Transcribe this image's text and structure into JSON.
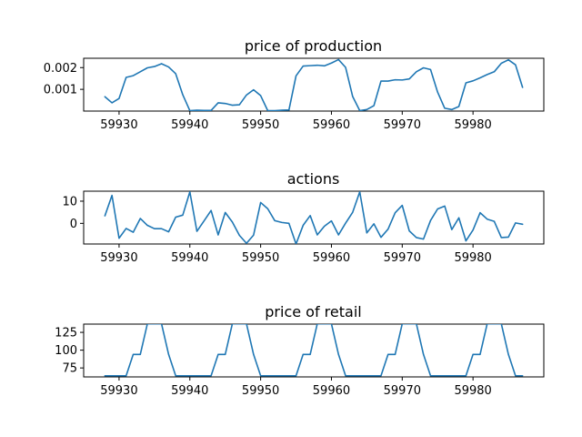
{
  "chart_data": [
    {
      "type": "line",
      "title": "price of production",
      "xlabel": "",
      "ylabel": "",
      "xlim": [
        59925,
        59990
      ],
      "ylim": [
        0.0,
        0.00243
      ],
      "x_ticks": [
        "59930",
        "59940",
        "59950",
        "59960",
        "59970",
        "59980"
      ],
      "y_ticks": [
        "0.001",
        "0.002"
      ],
      "grid": false,
      "color": "#1f77b4",
      "series": [
        {
          "x": [
            59928,
            59929,
            59930,
            59931,
            59932,
            59933,
            59934,
            59935,
            59936,
            59937,
            59938,
            59939,
            59940,
            59941,
            59942,
            59943,
            59944,
            59945,
            59946,
            59947,
            59948,
            59949,
            59950,
            59951,
            59952,
            59953,
            59954,
            59955,
            59956,
            59957,
            59958,
            59959,
            59960,
            59961,
            59962,
            59963,
            59964,
            59965,
            59966,
            59967,
            59968,
            59969,
            59970,
            59971,
            59972,
            59973,
            59974,
            59975,
            59976,
            59977,
            59978,
            59979,
            59980,
            59981,
            59982,
            59983,
            59984,
            59985,
            59986,
            59987
          ],
          "values": [
            0.00066,
            0.00038,
            0.00058,
            0.00155,
            0.00163,
            0.00181,
            0.00199,
            0.00205,
            0.00218,
            0.00203,
            0.00172,
            0.00075,
            2e-05,
            4e-05,
            3e-05,
            3e-05,
            0.00038,
            0.00035,
            0.00027,
            0.00029,
            0.00074,
            0.00098,
            0.00071,
            2e-05,
            2e-05,
            4e-05,
            5e-05,
            0.00162,
            0.00207,
            0.00209,
            0.00211,
            0.00208,
            0.00221,
            0.00237,
            0.00201,
            0.00067,
            2e-05,
            7e-05,
            0.00025,
            0.00138,
            0.00138,
            0.00144,
            0.00143,
            0.00148,
            0.00181,
            0.00199,
            0.00191,
            0.00087,
            0.00013,
            7e-05,
            0.00021,
            0.0013,
            0.00139,
            0.00153,
            0.00168,
            0.00181,
            0.0022,
            0.00236,
            0.00213,
            0.00109
          ]
        }
      ]
    },
    {
      "type": "line",
      "title": "actions",
      "xlabel": "",
      "ylabel": "",
      "xlim": [
        59925,
        59990
      ],
      "ylim": [
        -9.3,
        14.5
      ],
      "x_ticks": [
        "59930",
        "59940",
        "59950",
        "59960",
        "59970",
        "59980"
      ],
      "y_ticks": [
        "0",
        "10"
      ],
      "grid": false,
      "color": "#1f77b4",
      "series": [
        {
          "x": [
            59928,
            59929,
            59930,
            59931,
            59932,
            59933,
            59934,
            59935,
            59936,
            59937,
            59938,
            59939,
            59940,
            59941,
            59942,
            59943,
            59944,
            59945,
            59946,
            59947,
            59948,
            59949,
            59950,
            59951,
            59952,
            59953,
            59954,
            59955,
            59956,
            59957,
            59958,
            59959,
            59960,
            59961,
            59962,
            59963,
            59964,
            59965,
            59966,
            59967,
            59968,
            59969,
            59970,
            59971,
            59972,
            59973,
            59974,
            59975,
            59976,
            59977,
            59978,
            59979,
            59980,
            59981,
            59982,
            59983,
            59984,
            59985,
            59986,
            59987
          ],
          "values": [
            3.4,
            12.6,
            -6.7,
            -2.3,
            -4.0,
            2.2,
            -0.9,
            -2.4,
            -2.4,
            -3.8,
            2.8,
            3.7,
            14.2,
            -3.6,
            1.1,
            5.8,
            -5.2,
            4.9,
            0.6,
            -5.4,
            -9.0,
            -5.3,
            9.4,
            6.6,
            1.2,
            0.4,
            0.0,
            -9.3,
            -0.9,
            3.5,
            -5.2,
            -1.3,
            1.1,
            -5.2,
            0.1,
            5.0,
            14.2,
            -4.3,
            -0.2,
            -6.3,
            -2.6,
            4.8,
            8.1,
            -3.4,
            -6.4,
            -7.1,
            1.3,
            6.5,
            7.8,
            -2.8,
            2.5,
            -7.9,
            -3.0,
            4.8,
            1.9,
            0.9,
            -6.4,
            -6.2,
            0.2,
            -0.4
          ]
        }
      ]
    },
    {
      "type": "line",
      "title": "price of retail",
      "xlabel": "",
      "ylabel": "",
      "xlim": [
        59925,
        59990
      ],
      "ylim": [
        62.4,
        136.6
      ],
      "x_ticks": [
        "59930",
        "59940",
        "59950",
        "59960",
        "59970",
        "59980"
      ],
      "y_ticks": [
        "75",
        "100",
        "125"
      ],
      "grid": false,
      "color": "#1f77b4",
      "series": [
        {
          "x": [
            59928,
            59929,
            59930,
            59931,
            59932,
            59933,
            59934,
            59935,
            59936,
            59937,
            59938,
            59939,
            59940,
            59941,
            59942,
            59943,
            59944,
            59945,
            59946,
            59947,
            59948,
            59949,
            59950,
            59951,
            59952,
            59953,
            59954,
            59955,
            59956,
            59957,
            59958,
            59959,
            59960,
            59961,
            59962,
            59963,
            59964,
            59965,
            59966,
            59967,
            59968,
            59969,
            59970,
            59971,
            59972,
            59973,
            59974,
            59975,
            59976,
            59977,
            59978,
            59979,
            59980,
            59981,
            59982,
            59983,
            59984,
            59985,
            59986,
            59987
          ],
          "values": [
            64,
            64,
            64,
            64,
            94,
            94,
            137,
            137,
            137,
            94,
            64,
            64,
            64,
            64,
            64,
            64,
            94,
            94,
            137,
            137,
            137,
            94,
            64,
            64,
            64,
            64,
            64,
            64,
            94,
            94,
            137,
            137,
            137,
            94,
            64,
            64,
            64,
            64,
            64,
            64,
            94,
            94,
            137,
            137,
            137,
            94,
            64,
            64,
            64,
            64,
            64,
            64,
            94,
            94,
            137,
            137,
            137,
            94,
            64,
            64
          ]
        }
      ]
    }
  ]
}
